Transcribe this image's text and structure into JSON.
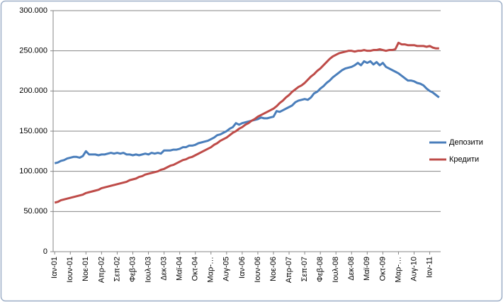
{
  "chart_data": {
    "type": "line",
    "categories": [
      "Ιαν-01",
      null,
      null,
      null,
      null,
      "Ιουν-01",
      null,
      null,
      null,
      null,
      "Νοε-01",
      null,
      null,
      null,
      null,
      "Απρ-02",
      null,
      null,
      null,
      null,
      "Σεπ-02",
      null,
      null,
      null,
      null,
      "Φεβ-03",
      null,
      null,
      null,
      null,
      "Ιουλ-03",
      null,
      null,
      null,
      null,
      "Δεκ-03",
      null,
      null,
      null,
      null,
      "Μαϊ-04",
      null,
      null,
      null,
      null,
      "Οκτ-04",
      null,
      null,
      null,
      null,
      "Μαρ-…",
      null,
      null,
      null,
      null,
      "Αυγ-05",
      null,
      null,
      null,
      null,
      "Ιαν-06",
      null,
      null,
      null,
      null,
      "Ιουν-06",
      null,
      null,
      null,
      null,
      "Νοε-06",
      null,
      null,
      null,
      null,
      "Απρ-07",
      null,
      null,
      null,
      null,
      "Σεπ-07",
      null,
      null,
      null,
      null,
      "Φεβ-08",
      null,
      null,
      null,
      null,
      "Ιουλ-08",
      null,
      null,
      null,
      null,
      "Δεκ-08",
      null,
      null,
      null,
      null,
      "Μαϊ-09",
      null,
      null,
      null,
      null,
      "Οκτ-09",
      null,
      null,
      null,
      null,
      "Μαρ-…",
      null,
      null,
      null,
      null,
      "Αυγ-10",
      null,
      null,
      null,
      null,
      "Ιαν-11",
      null,
      null,
      null
    ],
    "series": [
      {
        "name": "Депозити",
        "color": "#4a7ebb",
        "values": [
          110000,
          111000,
          113000,
          114000,
          116000,
          117000,
          118000,
          118000,
          117000,
          119000,
          125000,
          121000,
          121000,
          121000,
          120000,
          121000,
          121000,
          122000,
          123000,
          122000,
          123000,
          122000,
          123000,
          121000,
          121000,
          120000,
          121000,
          120000,
          121000,
          122000,
          121000,
          123000,
          122000,
          123000,
          122000,
          126000,
          126000,
          126000,
          127000,
          127000,
          128000,
          130000,
          130000,
          132000,
          132000,
          133000,
          135000,
          136000,
          137000,
          138000,
          140000,
          142000,
          145000,
          146000,
          148000,
          150000,
          153000,
          155000,
          160000,
          158000,
          160000,
          161000,
          162000,
          163000,
          164000,
          165000,
          167000,
          166000,
          166000,
          167000,
          168000,
          175000,
          174000,
          176000,
          178000,
          180000,
          182000,
          186000,
          188000,
          189000,
          190000,
          189000,
          192000,
          197000,
          199000,
          203000,
          206000,
          210000,
          213000,
          217000,
          220000,
          223000,
          226000,
          228000,
          229000,
          230000,
          232000,
          235000,
          232000,
          237000,
          235000,
          237000,
          233000,
          236000,
          232000,
          235000,
          230000,
          228000,
          226000,
          224000,
          222000,
          219000,
          216000,
          213000,
          213000,
          212000,
          210000,
          209000,
          207000,
          203000,
          200000,
          198000,
          195000,
          192000
        ]
      },
      {
        "name": "Кредити",
        "color": "#be4b48",
        "values": [
          61000,
          62000,
          64000,
          65000,
          66000,
          67000,
          68000,
          69000,
          70000,
          71000,
          73000,
          74000,
          75000,
          76000,
          77000,
          79000,
          80000,
          81000,
          82000,
          83000,
          84000,
          85000,
          86000,
          87000,
          89000,
          90000,
          91000,
          93000,
          94000,
          96000,
          97000,
          98000,
          99000,
          100000,
          102000,
          103000,
          105000,
          107000,
          108000,
          110000,
          112000,
          114000,
          115000,
          117000,
          118000,
          120000,
          122000,
          124000,
          126000,
          128000,
          130000,
          133000,
          135000,
          138000,
          140000,
          142000,
          145000,
          148000,
          150000,
          153000,
          155000,
          158000,
          160000,
          163000,
          165000,
          168000,
          170000,
          172000,
          174000,
          176000,
          178000,
          181000,
          185000,
          188000,
          192000,
          195000,
          199000,
          202000,
          205000,
          207000,
          210000,
          214000,
          218000,
          221000,
          225000,
          228000,
          232000,
          236000,
          240000,
          243000,
          245000,
          247000,
          248000,
          249000,
          250000,
          250000,
          249000,
          250000,
          250000,
          251000,
          250000,
          250000,
          251000,
          251000,
          252000,
          251000,
          250000,
          251000,
          251000,
          252000,
          260000,
          258000,
          258000,
          257000,
          257000,
          257000,
          256000,
          256000,
          256000,
          255000,
          256000,
          254000,
          253000,
          253000
        ]
      }
    ],
    "ylim": [
      0,
      300000
    ],
    "yticks": [
      {
        "value": 0,
        "label": "0"
      },
      {
        "value": 50000,
        "label": "50.000"
      },
      {
        "value": 100000,
        "label": "100.000"
      },
      {
        "value": 150000,
        "label": "150.000"
      },
      {
        "value": 200000,
        "label": "200.000"
      },
      {
        "value": 250000,
        "label": "250.000"
      },
      {
        "value": 300000,
        "label": "300.000"
      }
    ],
    "grid": true,
    "legend": "right"
  }
}
